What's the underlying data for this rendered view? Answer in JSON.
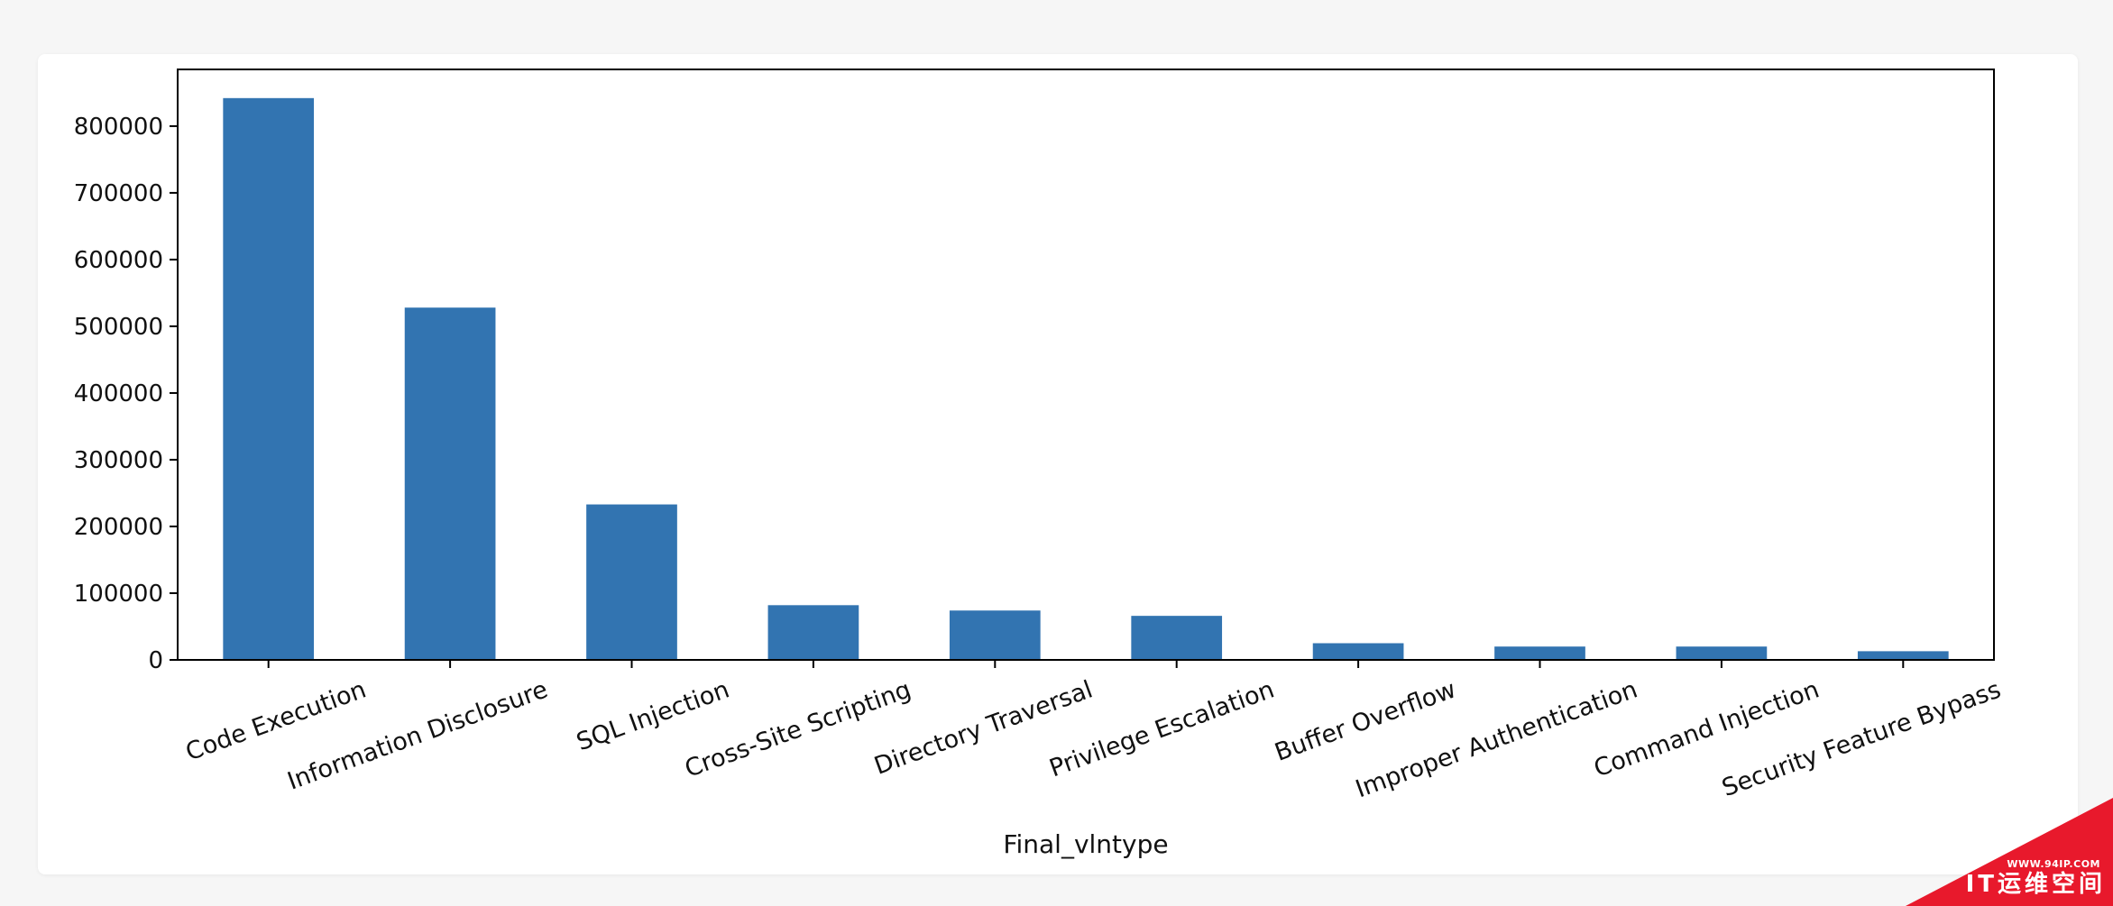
{
  "chart_data": {
    "type": "bar",
    "title": "",
    "xlabel": "Final_vlntype",
    "ylabel": "",
    "categories": [
      "Code Execution",
      "Information Disclosure",
      "SQL Injection",
      "Cross-Site Scripting",
      "Directory Traversal",
      "Privilege Escalation",
      "Buffer Overflow",
      "Improper Authentication",
      "Command Injection",
      "Security Feature Bypass"
    ],
    "values": [
      842000,
      528000,
      233000,
      82000,
      74000,
      66000,
      25000,
      20000,
      20000,
      13000
    ],
    "ylim": [
      0,
      885000
    ],
    "yticks": [
      0,
      100000,
      200000,
      300000,
      400000,
      500000,
      600000,
      700000,
      800000
    ],
    "ytick_labels": [
      "0",
      "100000",
      "200000",
      "300000",
      "400000",
      "500000",
      "600000",
      "700000",
      "800000"
    ],
    "bar_color": "#3274b1",
    "grid": false,
    "legend": "none"
  },
  "watermark": {
    "small": "WWW.94IP.COM",
    "big": "IT运维空间",
    "color": "#e8192c"
  }
}
